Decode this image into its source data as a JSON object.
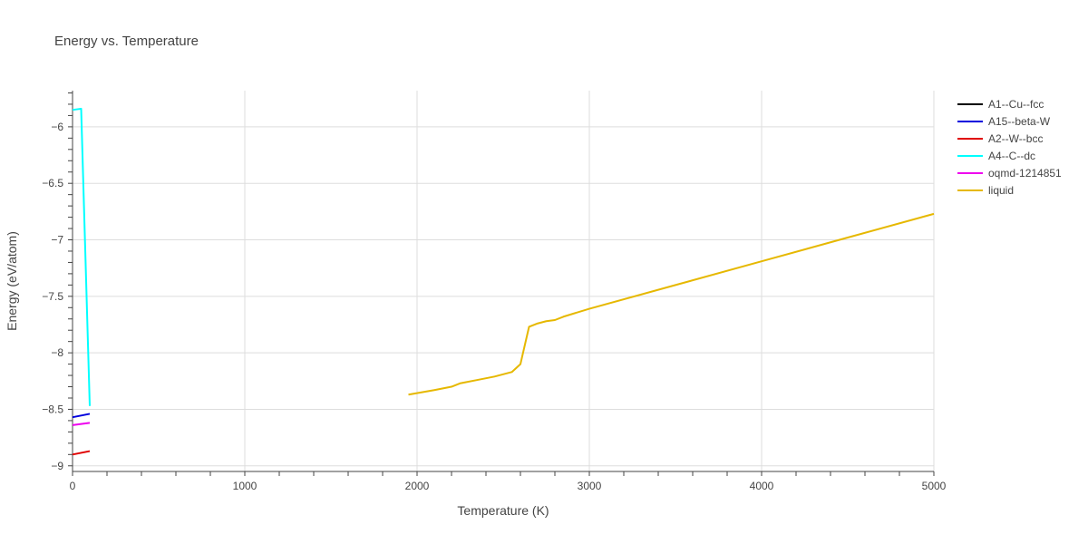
{
  "chart_data": {
    "type": "line",
    "title": "Energy vs. Temperature",
    "xlabel": "Temperature (K)",
    "ylabel": "Energy (eV/atom)",
    "xlim": [
      0,
      5000
    ],
    "ylim": [
      -9.05,
      -5.68
    ],
    "xticks": [
      0,
      1000,
      2000,
      3000,
      4000,
      5000
    ],
    "xtick_labels": [
      "0",
      "1000",
      "2000",
      "3000",
      "4000",
      "5000"
    ],
    "yticks": [
      -9,
      -8.5,
      -8,
      -7.5,
      -7,
      -6.5,
      -6
    ],
    "ytick_labels": [
      "−9",
      "−8.5",
      "−8",
      "−7.5",
      "−7",
      "−6.5",
      "−6"
    ],
    "grid": true,
    "legend_position": "top-right",
    "series": [
      {
        "name": "A1--Cu--fcc",
        "color": "#000000",
        "points": []
      },
      {
        "name": "A15--beta-W",
        "color": "#0000dd",
        "points": [
          [
            0,
            -8.57
          ],
          [
            100,
            -8.54
          ]
        ]
      },
      {
        "name": "A2--W--bcc",
        "color": "#e00000",
        "points": [
          [
            0,
            -8.9
          ],
          [
            100,
            -8.87
          ]
        ]
      },
      {
        "name": "A4--C--dc",
        "color": "#00ffff",
        "points": [
          [
            0,
            -5.85
          ],
          [
            50,
            -5.84
          ],
          [
            100,
            -8.47
          ]
        ]
      },
      {
        "name": "oqmd-1214851",
        "color": "#ee00ee",
        "points": [
          [
            0,
            -8.64
          ],
          [
            100,
            -8.62
          ]
        ]
      },
      {
        "name": "liquid",
        "color": "#e6b800",
        "points": [
          [
            1950,
            -8.37
          ],
          [
            2100,
            -8.33
          ],
          [
            2200,
            -8.3
          ],
          [
            2250,
            -8.27
          ],
          [
            2350,
            -8.24
          ],
          [
            2450,
            -8.21
          ],
          [
            2500,
            -8.19
          ],
          [
            2550,
            -8.17
          ],
          [
            2600,
            -8.1
          ],
          [
            2650,
            -7.77
          ],
          [
            2700,
            -7.74
          ],
          [
            2750,
            -7.72
          ],
          [
            2800,
            -7.71
          ],
          [
            2850,
            -7.68
          ],
          [
            3000,
            -7.61
          ],
          [
            3500,
            -7.4
          ],
          [
            4000,
            -7.19
          ],
          [
            4500,
            -6.98
          ],
          [
            5000,
            -6.77
          ]
        ]
      }
    ]
  }
}
